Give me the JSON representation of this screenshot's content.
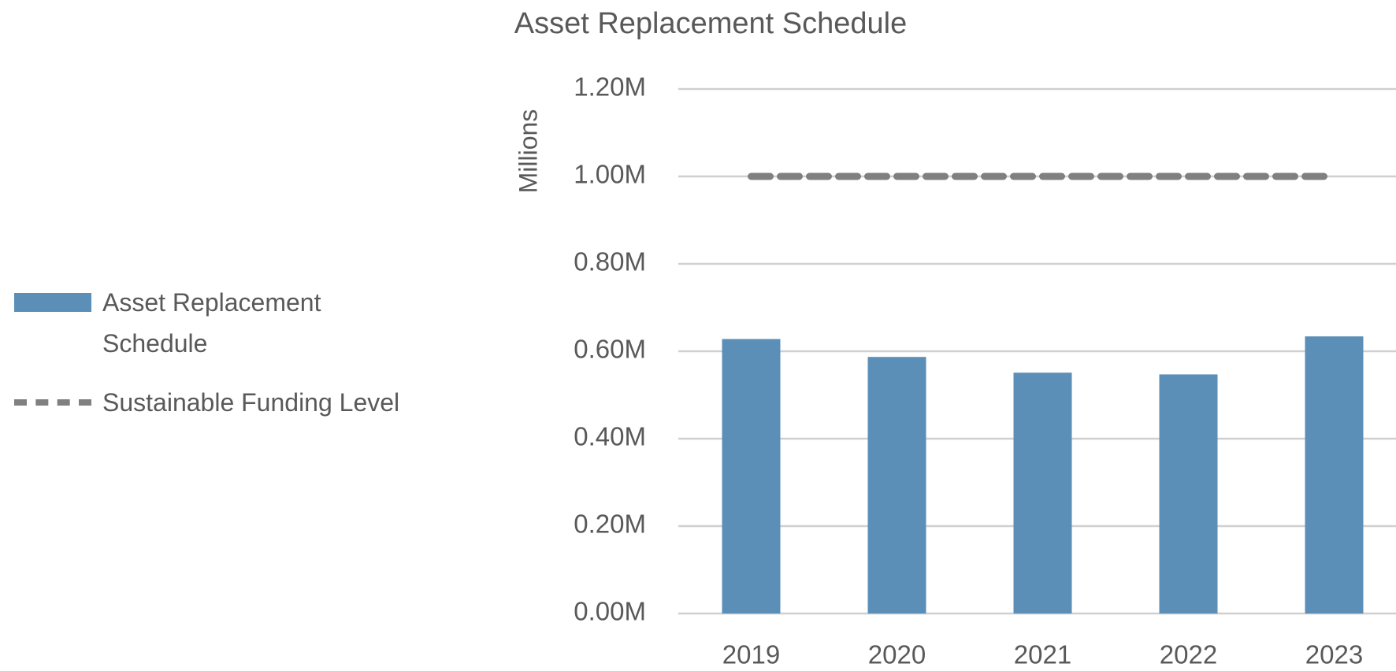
{
  "chart_data": {
    "type": "bar",
    "title": "Asset Replacement Schedule",
    "y_label": "Millions",
    "categories": [
      "2019",
      "2020",
      "2021",
      "2022",
      "2023"
    ],
    "series": [
      {
        "name": "Asset Replacement Schedule",
        "type": "bar",
        "color": "#5b8fb8",
        "values": [
          0.628,
          0.587,
          0.551,
          0.547,
          0.634
        ]
      },
      {
        "name": "Sustainable Funding Level",
        "type": "line",
        "dashed": true,
        "color": "#808080",
        "values": [
          1,
          1,
          1,
          1,
          1
        ]
      }
    ],
    "ylim": [
      0,
      1.2
    ],
    "yticks": [
      {
        "value": 0,
        "label": "0.00M"
      },
      {
        "value": 0.2,
        "label": "0.20M"
      },
      {
        "value": 0.4,
        "label": "0.40M"
      },
      {
        "value": 0.6,
        "label": "0.60M"
      },
      {
        "value": 0.8,
        "label": "0.80M"
      },
      {
        "value": 1,
        "label": "1.00M"
      },
      {
        "value": 1.2,
        "label": "1.20M"
      }
    ],
    "grid": true,
    "legend": "left"
  }
}
